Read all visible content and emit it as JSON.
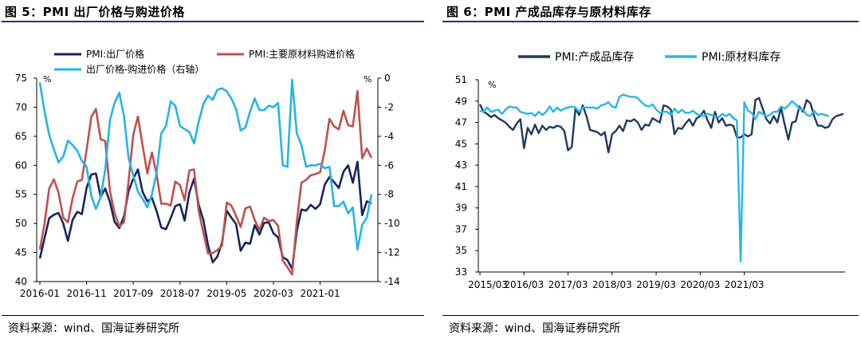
{
  "figures": [
    {
      "title": "图 5：PMI 出厂价格与购进价格",
      "source": "资料来源：wind、国海证券研究所"
    },
    {
      "title": "图 6：PMI 产成品库存与原材料库存",
      "source": "资料来源：wind、国海证券研究所"
    }
  ],
  "chart_data": [
    {
      "type": "line",
      "title": "PMI 出厂价格与购进价格",
      "left_unit": "%",
      "right_unit": "%",
      "ylim_left": [
        40,
        75
      ],
      "yticks_left": [
        40,
        45,
        50,
        55,
        60,
        65,
        70,
        75
      ],
      "ylim_right": [
        -14,
        0
      ],
      "yticks_right": [
        -14,
        -12,
        -10,
        -8,
        -6,
        -4,
        -2,
        0
      ],
      "x_ticks": [
        "2016-01",
        "2016-11",
        "2017-09",
        "2018-07",
        "2019-05",
        "2020-03",
        "2021-01"
      ],
      "x_start": "2016-01",
      "series": [
        {
          "name": "PMI:出厂价格",
          "axis": "left",
          "color": "#14275c",
          "values": [
            44.0,
            47.5,
            50.9,
            51.5,
            51.8,
            50.0,
            47.0,
            50.6,
            52.0,
            51.6,
            56.1,
            58.4,
            58.6,
            54.6,
            56.0,
            53.7,
            50.3,
            49.2,
            51.2,
            55.6,
            57.7,
            59.3,
            55.4,
            53.8,
            54.4,
            52.1,
            49.3,
            49.0,
            50.9,
            53.0,
            53.3,
            50.5,
            55.3,
            57.7,
            53.2,
            50.6,
            46.3,
            43.3,
            44.3,
            46.7,
            52.2,
            51.0,
            49.9,
            45.3,
            46.7,
            46.5,
            49.7,
            48.1,
            50.1,
            50.2,
            48.3,
            47.6,
            44.2,
            43.7,
            42.2,
            48.7,
            52.4,
            52.2,
            53.2,
            52.5,
            53.3,
            56.7,
            58.0,
            57.1,
            56.1,
            58.9,
            60.0,
            57.0,
            60.6,
            51.4,
            53.8,
            53.5
          ]
        },
        {
          "name": "PMI:主要原材料购进价格",
          "axis": "left",
          "color": "#c0504d",
          "values": [
            45.5,
            50.0,
            56.0,
            57.6,
            55.3,
            51.0,
            50.2,
            54.3,
            57.2,
            57.5,
            62.6,
            68.3,
            69.7,
            64.5,
            64.2,
            55.6,
            51.8,
            49.5,
            50.2,
            57.3,
            65.3,
            68.4,
            63.4,
            58.6,
            62.2,
            58.4,
            53.4,
            53.4,
            53.1,
            57.2,
            56.6,
            54.0,
            59.1,
            59.3,
            52.2,
            48.4,
            44.8,
            44.9,
            45.4,
            46.2,
            53.6,
            53.1,
            51.3,
            49.4,
            52.6,
            52.9,
            50.6,
            48.9,
            51.0,
            50.4,
            50.6,
            49.6,
            43.6,
            42.5,
            41.2,
            50.3,
            57.0,
            57.5,
            58.3,
            58.5,
            58.8,
            62.6,
            68.0,
            66.7,
            66.2,
            69.4,
            66.9,
            66.7,
            72.8,
            61.2,
            62.9,
            61.3
          ]
        },
        {
          "name": "出厂价格-购进价格（右轴）",
          "axis": "right",
          "color": "#26b3e8",
          "values": [
            -0.3,
            -2.3,
            -3.9,
            -4.9,
            -5.8,
            -5.4,
            -4.3,
            -4.6,
            -5.0,
            -5.7,
            -6.1,
            -8.1,
            -9.0,
            -8.2,
            -6.3,
            -2.9,
            -1.7,
            -1.0,
            -2.6,
            -5.5,
            -6.7,
            -7.8,
            -8.3,
            -8.9,
            -8.0,
            -6.5,
            -3.8,
            -3.3,
            -1.6,
            -1.9,
            -3.3,
            -3.5,
            -3.7,
            -4.5,
            -3.0,
            -1.8,
            -1.2,
            -1.5,
            -0.8,
            -0.7,
            -0.9,
            -1.4,
            -2.1,
            -3.6,
            -3.4,
            -2.3,
            -1.4,
            -2.2,
            -2.2,
            -1.9,
            -2.0,
            -1.7,
            -6.0,
            -6.1,
            -0.1,
            -3.8,
            -4.6,
            -6.1,
            -6.0,
            -6.0,
            -5.9,
            -6.2,
            -6.1,
            -8.8,
            -8.8,
            -8.5,
            -9.3,
            -8.9,
            -11.8,
            -10.1,
            -9.6,
            -8.0
          ]
        }
      ]
    },
    {
      "type": "line",
      "title": "PMI 产成品库存与原材料库存",
      "left_unit": "%",
      "ylim": [
        33,
        51
      ],
      "yticks": [
        33,
        35,
        37,
        39,
        41,
        43,
        45,
        47,
        49,
        51
      ],
      "x_ticks": [
        "2015/03",
        "2016/03",
        "2017/03",
        "2018/03",
        "2019/03",
        "2020/03",
        "2021/03"
      ],
      "x_start": "2015/03",
      "series": [
        {
          "name": "PMI:产成品库存",
          "color": "#1f3a5f",
          "values": [
            48.7,
            48.0,
            47.8,
            47.5,
            47.7,
            47.4,
            47.2,
            47.0,
            46.6,
            46.3,
            46.9,
            47.3,
            44.6,
            46.5,
            45.9,
            46.8,
            46.0,
            46.7,
            46.3,
            46.6,
            46.5,
            46.7,
            46.6,
            46.2,
            44.4,
            44.7,
            48.3,
            47.7,
            48.6,
            47.6,
            46.3,
            46.2,
            46.1,
            45.8,
            46.1,
            44.2,
            45.9,
            46.2,
            46.7,
            46.2,
            47.2,
            47.1,
            47.3,
            47.0,
            46.3,
            46.8,
            46.7,
            47.4,
            47.2,
            47.0,
            48.6,
            48.5,
            48.2,
            45.9,
            46.5,
            46.4,
            46.9,
            47.3,
            46.7,
            47.4,
            47.6,
            48.1,
            47.2,
            46.5,
            48.0,
            47.0,
            47.4,
            46.7,
            46.8,
            46.7,
            45.6,
            45.6,
            45.9,
            45.7,
            45.9,
            49.1,
            49.3,
            48.3,
            47.3,
            46.9,
            47.6,
            47.0,
            48.4,
            46.8,
            45.4,
            47.0,
            47.1,
            48.5,
            48.0,
            49.1,
            48.8,
            47.6,
            46.7,
            46.7,
            46.5,
            46.6,
            47.3,
            47.6,
            47.7,
            47.8
          ]
        },
        {
          "name": "PMI:原材料库存",
          "color": "#29b5ea",
          "values": [
            48.1,
            48.0,
            48.4,
            48.0,
            48.1,
            48.2,
            47.8,
            48.2,
            48.5,
            48.4,
            48.4,
            48.0,
            47.9,
            47.8,
            47.9,
            47.6,
            48.0,
            47.7,
            48.0,
            48.5,
            48.0,
            48.4,
            48.1,
            48.3,
            48.4,
            48.5,
            48.4,
            48.0,
            48.4,
            48.4,
            48.4,
            48.4,
            48.3,
            48.6,
            48.7,
            48.9,
            48.5,
            48.4,
            49.4,
            49.6,
            49.5,
            49.4,
            49.4,
            49.3,
            48.9,
            48.6,
            48.5,
            48.7,
            48.2,
            47.9,
            48.0,
            48.0,
            47.7,
            48.3,
            47.9,
            48.2,
            47.9,
            47.9,
            48.1,
            47.8,
            47.7,
            47.6,
            47.8,
            47.7,
            47.6,
            47.5,
            47.8,
            47.6,
            47.8,
            47.4,
            47.2,
            34.0,
            48.9,
            48.1,
            47.9,
            47.3,
            48.0,
            47.8,
            47.6,
            47.7,
            48.0,
            48.0,
            48.5,
            48.3,
            48.6,
            49.0,
            48.7,
            48.3,
            48.2,
            47.7,
            47.6,
            48.1,
            47.7,
            47.8,
            47.7,
            47.6
          ]
        }
      ]
    }
  ]
}
